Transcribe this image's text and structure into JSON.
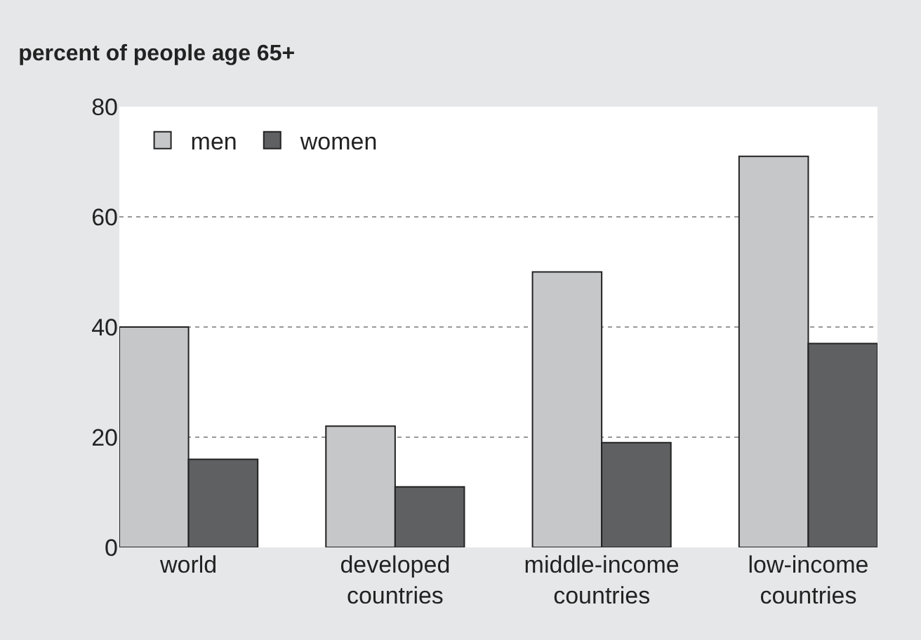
{
  "chart_data": {
    "type": "bar",
    "title": "percent of people age 65+",
    "categories": [
      "world",
      "developed countries",
      "middle-income countries",
      "low-income countries"
    ],
    "series": [
      {
        "name": "men",
        "color": "#c6c7c9",
        "values": [
          40,
          22,
          50,
          71
        ]
      },
      {
        "name": "women",
        "color": "#5f6062",
        "values": [
          16,
          11,
          19,
          37
        ]
      }
    ],
    "ylim": [
      0,
      80
    ],
    "yticks": [
      0,
      20,
      40,
      60,
      80
    ],
    "grid": "y",
    "legend": "top left"
  }
}
